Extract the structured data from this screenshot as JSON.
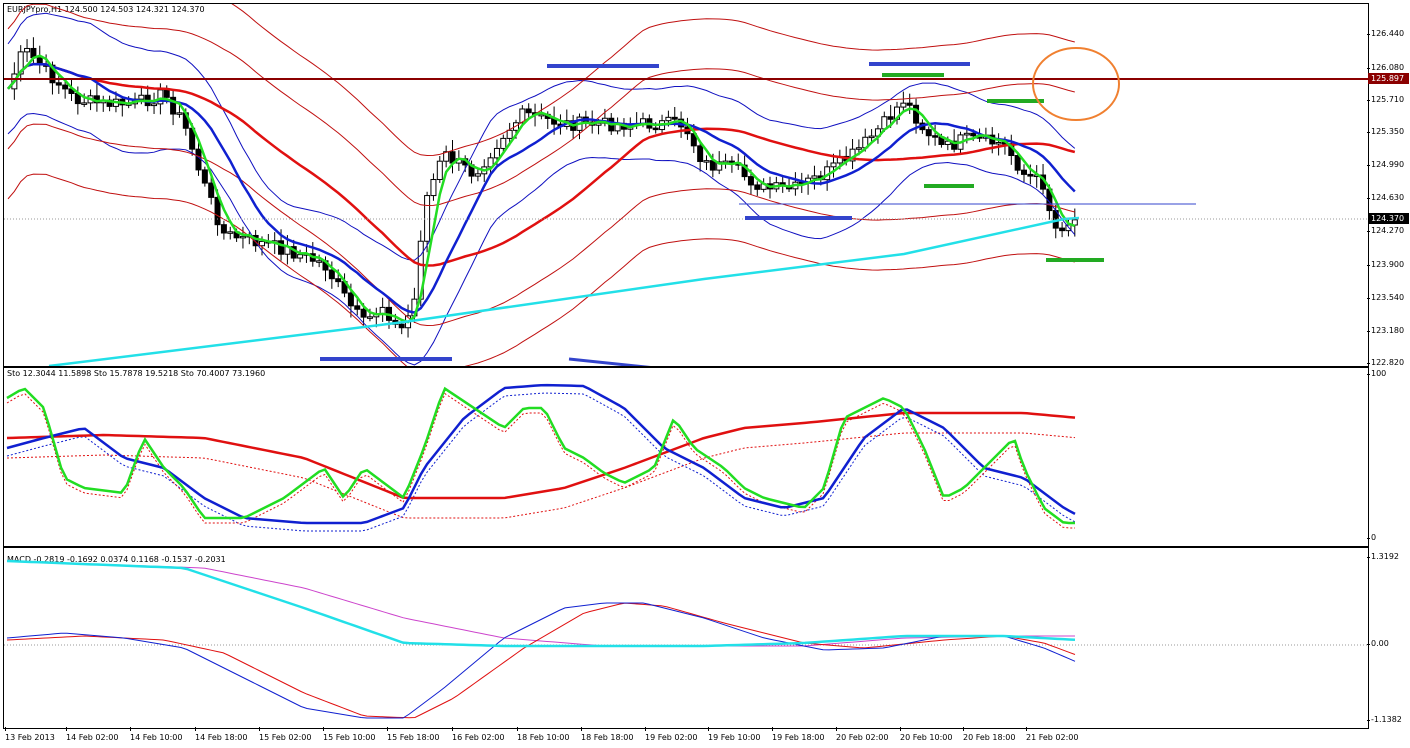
{
  "main": {
    "header": "EURJPYpro,H1  124.500 124.503 124.321 124.370",
    "y_ticks": [
      "126.440",
      "126.080",
      "125.710",
      "125.350",
      "124.990",
      "124.630",
      "124.270",
      "123.900",
      "123.540",
      "123.180",
      "122.820"
    ],
    "resistance_tag": "125.897",
    "price_tag": "124.370"
  },
  "stoch": {
    "header": "Sto 12.3044 11.5898  Sto 15.7878 19.5218  Sto 70.4007 73.1960",
    "y_ticks": [
      "100",
      "0"
    ]
  },
  "macd": {
    "header": "MACD -0.2819 -0.1692 0.0374 0.1168 -0.1537 -0.2031",
    "y_ticks": [
      "1.3192",
      "0.00",
      "-1.1382"
    ]
  },
  "time_axis": [
    "13 Feb 2013",
    "14 Feb 02:00",
    "14 Feb 10:00",
    "14 Feb 18:00",
    "15 Feb 02:00",
    "15 Feb 10:00",
    "15 Feb 18:00",
    "16 Feb 02:00",
    "18 Feb 10:00",
    "18 Feb 18:00",
    "19 Feb 02:00",
    "19 Feb 10:00",
    "19 Feb 18:00",
    "20 Feb 02:00",
    "20 Feb 10:00",
    "20 Feb 18:00",
    "21 Feb 02:00"
  ],
  "colors": {
    "ma_fast": "#22dd22",
    "ma_mid": "#1020d0",
    "ma_slow": "#e01010",
    "ma_long": "#22e0e8",
    "bands": "#1010c0",
    "envelope": "#c01010",
    "annotation_blue": "#3344cc",
    "annotation_green": "#22aa22",
    "circle": "#f08030",
    "resistance": "#8b0000"
  }
}
